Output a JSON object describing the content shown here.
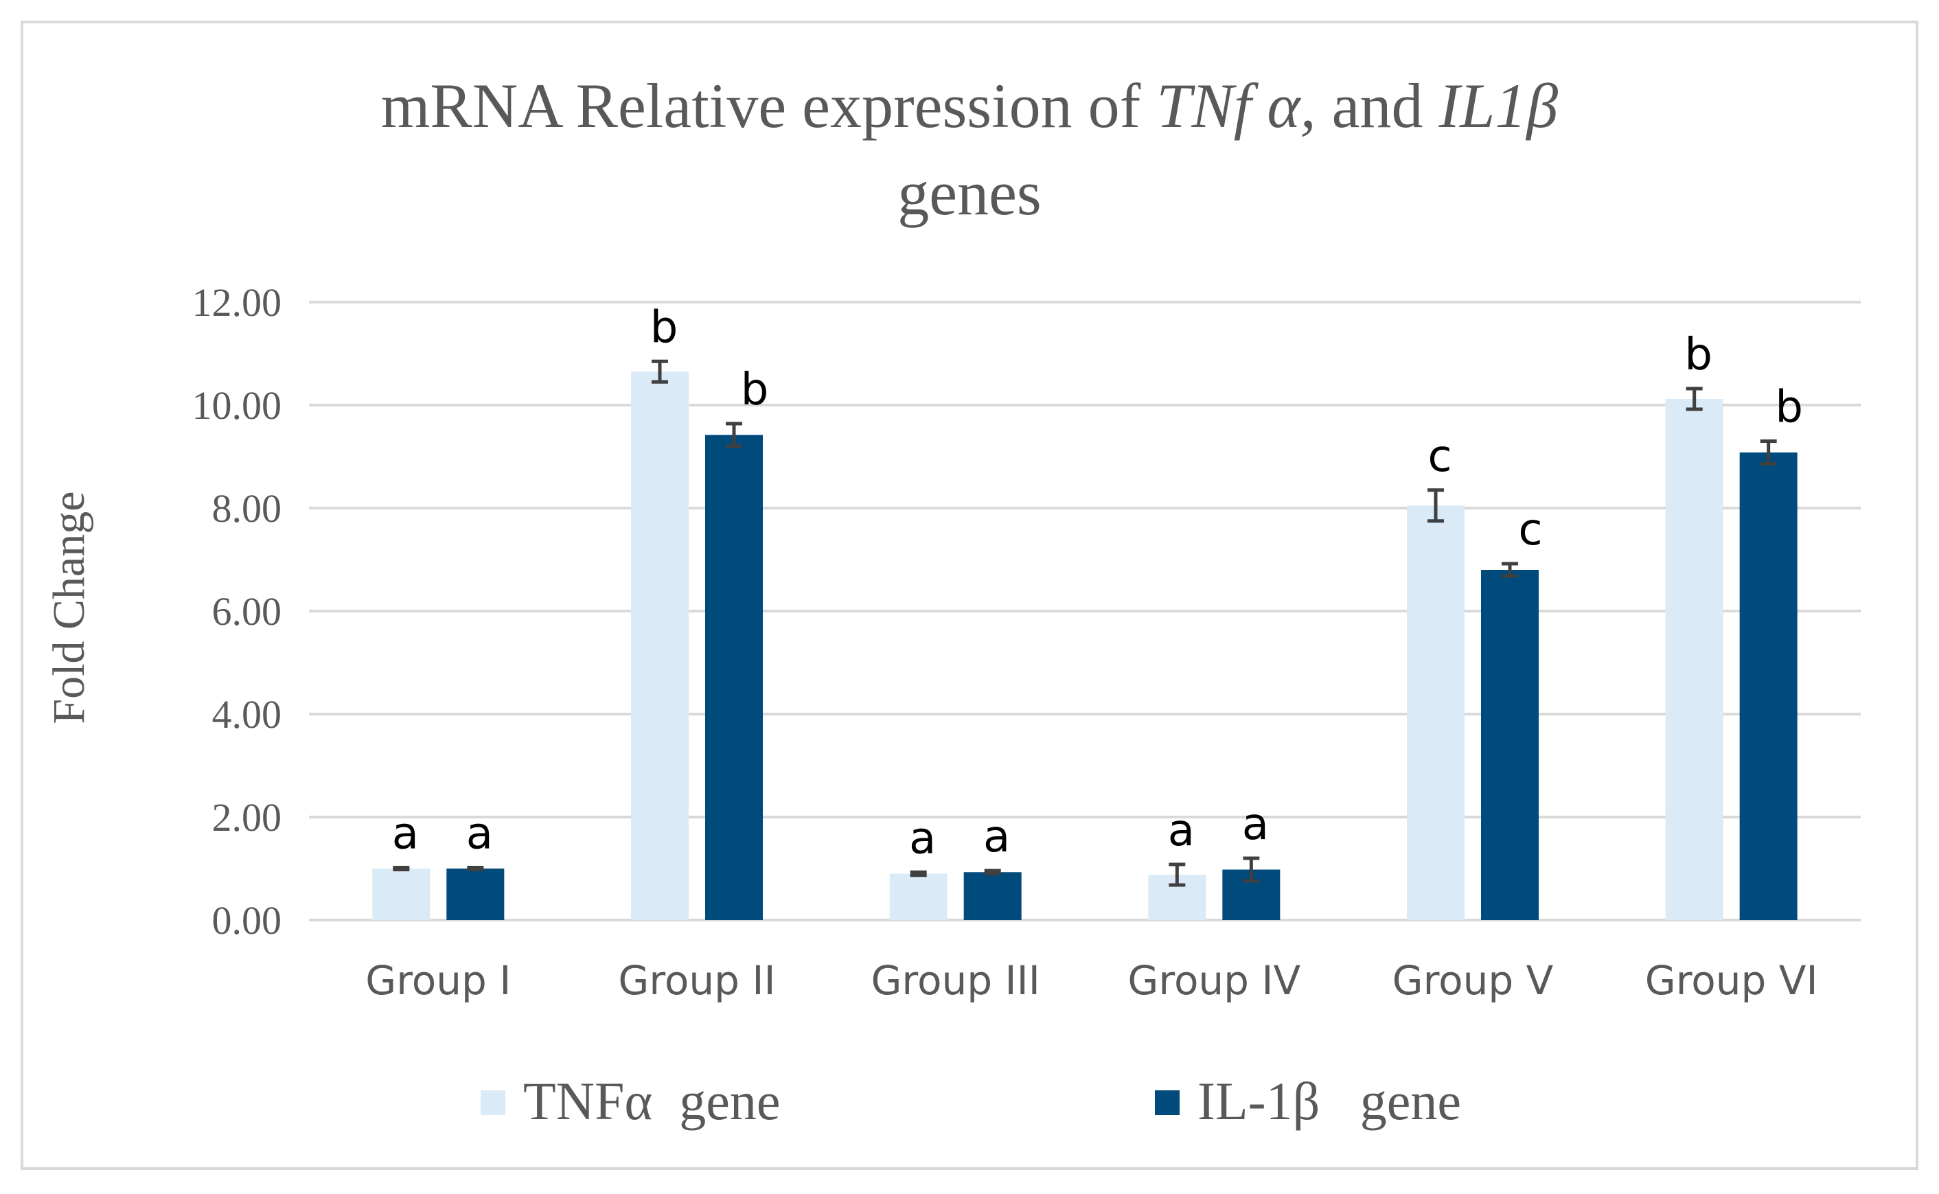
{
  "chart_data": {
    "type": "bar",
    "title": {
      "line1_prefix": "mRNA Relative expression of",
      "line1_gene1": "TNf α,",
      "line1_and": "and",
      "line1_gene2": "IL1β",
      "line2": "genes"
    },
    "xlabel": "",
    "ylabel": "Fold Change",
    "ylim": [
      0,
      12
    ],
    "ytick_values": [
      0,
      2,
      4,
      6,
      8,
      10,
      12
    ],
    "ytick_labels": [
      "0.00",
      "2.00",
      "4.00",
      "6.00",
      "8.00",
      "10.00",
      "12.00"
    ],
    "grid": true,
    "legend_position": "bottom",
    "categories": [
      "Group I",
      "Group II",
      "Group III",
      "Group IV",
      "Group V",
      "Group VI"
    ],
    "series": [
      {
        "name": "TNFα  gene",
        "color": "#daeaf7",
        "values": [
          1.0,
          10.65,
          0.9,
          0.88,
          8.05,
          10.12
        ],
        "errors": [
          0.02,
          0.2,
          0.03,
          0.2,
          0.3,
          0.2
        ],
        "labels": [
          "a",
          "b",
          "a",
          "a",
          "c",
          "b"
        ]
      },
      {
        "name": "IL-1β   gene",
        "color": "#004a7c",
        "values": [
          1.0,
          9.42,
          0.93,
          0.98,
          6.8,
          9.08
        ],
        "errors": [
          0.02,
          0.22,
          0.03,
          0.22,
          0.12,
          0.22
        ],
        "labels": [
          "a",
          "b",
          "a",
          "a",
          "c",
          "b"
        ]
      }
    ],
    "colors": {
      "grid": "#d9d9d9",
      "axis_text": "#595959",
      "error_bar": "#404040",
      "frame": "#d9d9d9"
    }
  }
}
